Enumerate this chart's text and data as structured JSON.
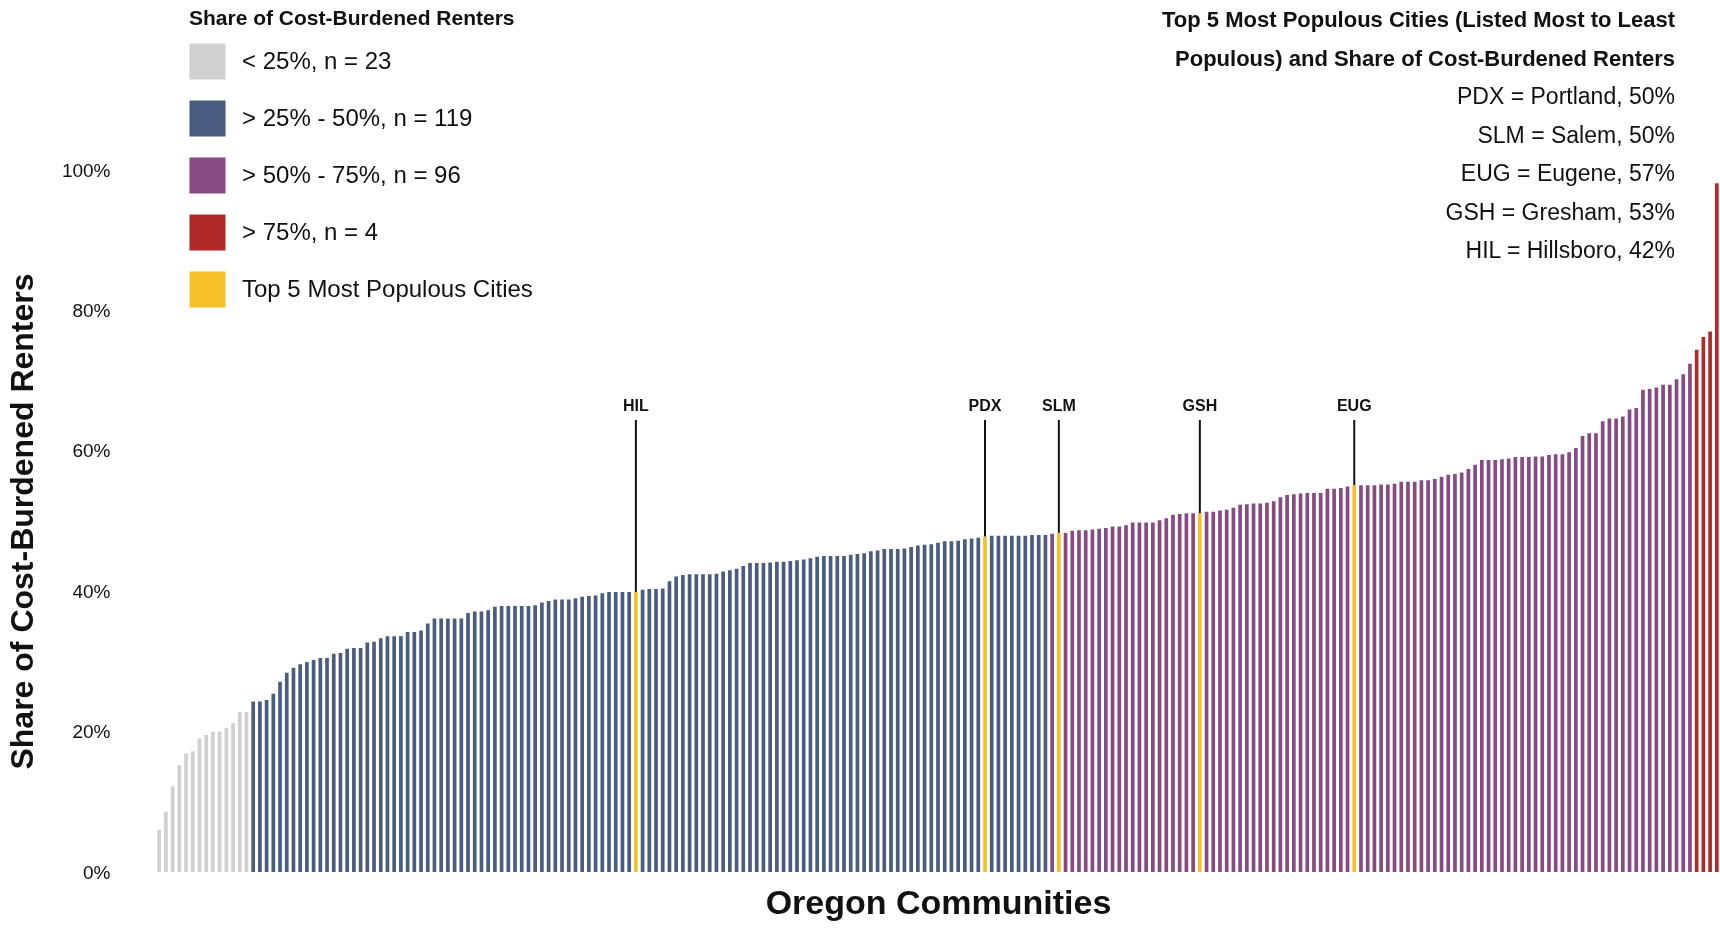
{
  "chart_data": {
    "type": "bar",
    "xlabel": "Oregon Communities",
    "ylabel": "Share of Cost-Burdened Renters",
    "legend_title": "Share of Cost-Burdened Renters",
    "legend": "top left",
    "grid": false,
    "stacked": true,
    "tick_labels": "y",
    "ylim": [
      0,
      100
    ],
    "yticks": [
      {
        "value": 0,
        "label": "0%"
      },
      {
        "value": 20,
        "label": "20%"
      },
      {
        "value": 40,
        "label": "40%"
      },
      {
        "value": 60,
        "label": "60%"
      },
      {
        "value": 80,
        "label": "80%"
      },
      {
        "value": 100,
        "label": "100%"
      }
    ],
    "categories": [
      null,
      null,
      null,
      null,
      null,
      null,
      null,
      null,
      null,
      null,
      null,
      null,
      null,
      null,
      null,
      null,
      null,
      null,
      null,
      null,
      null,
      null,
      null,
      null,
      null,
      null,
      null,
      null,
      null,
      null,
      null,
      null,
      null,
      null,
      null,
      null,
      null,
      null,
      null,
      null,
      null,
      null,
      null,
      null,
      null,
      null,
      null,
      null,
      null,
      null,
      null,
      null,
      null,
      null,
      null,
      null,
      null,
      null,
      null,
      null,
      null,
      null,
      null,
      null,
      null,
      null,
      null,
      null,
      null,
      null,
      null,
      null,
      null,
      null,
      null,
      null,
      null,
      null,
      null,
      null,
      null,
      null,
      null,
      null,
      null,
      null,
      null,
      null,
      null,
      null,
      null,
      null,
      null,
      null,
      null,
      null,
      null,
      null,
      null,
      null,
      null,
      null,
      null,
      null,
      null,
      null,
      null,
      null,
      null,
      null,
      null,
      null,
      null,
      null,
      null,
      null,
      null,
      null,
      null,
      null,
      null,
      null,
      null,
      null,
      null,
      null,
      null,
      null,
      null,
      null,
      null,
      null,
      null,
      null,
      null,
      null,
      null,
      null,
      null,
      null,
      null,
      null,
      null,
      null,
      null,
      null,
      null,
      null,
      null,
      null,
      null,
      null,
      null,
      null,
      null,
      null,
      null,
      null,
      null,
      null,
      null,
      null,
      null,
      null,
      null,
      null,
      null,
      null,
      null,
      null,
      null,
      null,
      null,
      null,
      null,
      null,
      null,
      null,
      null,
      null,
      null,
      null,
      null,
      null,
      null,
      null,
      null,
      null,
      null,
      null,
      null,
      null,
      null,
      null,
      null,
      null,
      null,
      null,
      null,
      null,
      null,
      null,
      null,
      null,
      null,
      null,
      null,
      null,
      null,
      null,
      null,
      null,
      null,
      null,
      null,
      null,
      null,
      null,
      null,
      null,
      null,
      null,
      null,
      null,
      null,
      null,
      null,
      null,
      null,
      null,
      null,
      null,
      null
    ],
    "series": [
      {
        "name": "< 25%, n =  23",
        "color": "#d0d0d0",
        "values": [
          6.0,
          8.6,
          12.2,
          15.2,
          16.9,
          17.2,
          19.0,
          19.5,
          20.0,
          20.0,
          20.5,
          21.2,
          22.8,
          22.8,
          null,
          null,
          null,
          null,
          null,
          null,
          null,
          null,
          null,
          null,
          null,
          null,
          null,
          null,
          null,
          null,
          null,
          null,
          null,
          null,
          null,
          null,
          null,
          null,
          null,
          null,
          null,
          null,
          null,
          null,
          null,
          null,
          null,
          null,
          null,
          null,
          null,
          null,
          null,
          null,
          null,
          null,
          null,
          null,
          null,
          null,
          null,
          null,
          null,
          null,
          null,
          null,
          null,
          null,
          null,
          null,
          null,
          null,
          null,
          null,
          null,
          null,
          null,
          null,
          null,
          null,
          null,
          null,
          null,
          null,
          null,
          null,
          null,
          null,
          null,
          null,
          null,
          null,
          null,
          null,
          null,
          null,
          null,
          null,
          null,
          null,
          null,
          null,
          null,
          null,
          null,
          null,
          null,
          null,
          null,
          null,
          null,
          null,
          null,
          null,
          null,
          null,
          null,
          null,
          null,
          null,
          null,
          null,
          null,
          null,
          null,
          null,
          null,
          null,
          null,
          null,
          null,
          null,
          null,
          null,
          null,
          null,
          null,
          null,
          null,
          null,
          null,
          null,
          null,
          null,
          null,
          null,
          null,
          null,
          null,
          null,
          null,
          null,
          null,
          null,
          null,
          null,
          null,
          null,
          null,
          null,
          null,
          null,
          null,
          null,
          null,
          null,
          null,
          null,
          null,
          null,
          null,
          null,
          null,
          null,
          null,
          null,
          null,
          null,
          null,
          null,
          null,
          null,
          null,
          null,
          null,
          null,
          null,
          null,
          null,
          null,
          null,
          null,
          null,
          null,
          null,
          null,
          null,
          null,
          null,
          null,
          null,
          null,
          null,
          null,
          null,
          null,
          null,
          null,
          null,
          null,
          null,
          null,
          null,
          null,
          null,
          null,
          null,
          null,
          null,
          null,
          null,
          null,
          null,
          null,
          null,
          null,
          null,
          null,
          null,
          null,
          null,
          null,
          null
        ]
      },
      {
        "name": "> 25% - 50%, n = 119",
        "color": "#4a5c80",
        "values": [
          null,
          null,
          null,
          null,
          null,
          null,
          null,
          null,
          null,
          null,
          null,
          null,
          null,
          null,
          24.3,
          24.3,
          24.5,
          25.4,
          27.1,
          28.4,
          29.1,
          29.6,
          29.9,
          30.2,
          30.5,
          30.5,
          31.1,
          31.2,
          31.8,
          31.9,
          31.9,
          32.7,
          32.8,
          33.3,
          33.6,
          33.6,
          33.6,
          34.2,
          34.2,
          34.4,
          35.4,
          36.1,
          36.1,
          36.1,
          36.1,
          36.1,
          36.9,
          37.1,
          37.1,
          37.3,
          37.8,
          37.9,
          37.9,
          37.9,
          37.9,
          37.9,
          38.0,
          38.4,
          38.6,
          38.8,
          38.8,
          38.8,
          39.0,
          39.2,
          39.3,
          39.4,
          39.7,
          39.9,
          39.9,
          39.9,
          39.9,
          null,
          40.2,
          40.3,
          40.3,
          40.4,
          41.4,
          42.1,
          42.3,
          42.4,
          42.4,
          42.4,
          42.4,
          42.5,
          42.8,
          43.0,
          43.2,
          43.6,
          44.0,
          44.0,
          44.0,
          44.1,
          44.2,
          44.2,
          44.3,
          44.4,
          44.5,
          44.7,
          44.9,
          45.0,
          45.0,
          45.0,
          45.0,
          45.2,
          45.3,
          45.4,
          45.7,
          45.8,
          46.0,
          46.0,
          46.0,
          46.1,
          46.3,
          46.5,
          46.6,
          46.7,
          46.9,
          47.1,
          47.1,
          47.2,
          47.4,
          47.5,
          47.6,
          null,
          47.9,
          47.9,
          47.9,
          47.9,
          47.9,
          47.9,
          48.0,
          48.0,
          48.0,
          null,
          null,
          null,
          null,
          null,
          null,
          null,
          null,
          null,
          null,
          null,
          null,
          null,
          null,
          null,
          null,
          null,
          null,
          null,
          null,
          null,
          null,
          null,
          null,
          null,
          null,
          null,
          null,
          null,
          null,
          null,
          null,
          null,
          null,
          null,
          null,
          null,
          null,
          null,
          null,
          null,
          null,
          null,
          null,
          null,
          null,
          null,
          null,
          null,
          null,
          null,
          null,
          null,
          null,
          null,
          null,
          null,
          null,
          null,
          null,
          null,
          null,
          null,
          null,
          null,
          null,
          null,
          null,
          null,
          null,
          null,
          null,
          null,
          null,
          null,
          null,
          null,
          null,
          null,
          null,
          null,
          null,
          null,
          null,
          null,
          null,
          null,
          null,
          null,
          null,
          null,
          null,
          null,
          null,
          null,
          null,
          null,
          null,
          null,
          null
        ]
      },
      {
        "name": "> 50% - 75%, n = 96",
        "color": "#874a82",
        "values": [
          null,
          null,
          null,
          null,
          null,
          null,
          null,
          null,
          null,
          null,
          null,
          null,
          null,
          null,
          null,
          null,
          null,
          null,
          null,
          null,
          null,
          null,
          null,
          null,
          null,
          null,
          null,
          null,
          null,
          null,
          null,
          null,
          null,
          null,
          null,
          null,
          null,
          null,
          null,
          null,
          null,
          null,
          null,
          null,
          null,
          null,
          null,
          null,
          null,
          null,
          null,
          null,
          null,
          null,
          null,
          null,
          null,
          null,
          null,
          null,
          null,
          null,
          null,
          null,
          null,
          null,
          null,
          null,
          null,
          null,
          null,
          null,
          null,
          null,
          null,
          null,
          null,
          null,
          null,
          null,
          null,
          null,
          null,
          null,
          null,
          null,
          null,
          null,
          null,
          null,
          null,
          null,
          null,
          null,
          null,
          null,
          null,
          null,
          null,
          null,
          null,
          null,
          null,
          null,
          null,
          null,
          null,
          null,
          null,
          null,
          null,
          null,
          null,
          null,
          null,
          null,
          null,
          null,
          null,
          null,
          null,
          null,
          null,
          null,
          null,
          null,
          null,
          null,
          null,
          null,
          null,
          null,
          null,
          48.2,
          null,
          48.3,
          48.6,
          48.7,
          48.7,
          48.8,
          48.9,
          49.0,
          49.2,
          49.2,
          49.4,
          49.8,
          49.8,
          49.8,
          49.8,
          50.1,
          50.4,
          50.9,
          51.0,
          51.1,
          51.1,
          null,
          51.3,
          51.3,
          51.5,
          51.6,
          51.9,
          52.3,
          52.4,
          52.5,
          52.5,
          52.6,
          52.8,
          53.4,
          53.7,
          53.8,
          53.9,
          54.0,
          54.0,
          54.0,
          54.6,
          54.6,
          54.7,
          54.9,
          null,
          55.1,
          55.1,
          55.1,
          55.2,
          55.2,
          55.3,
          55.6,
          55.6,
          55.6,
          55.8,
          55.8,
          56.0,
          56.3,
          56.6,
          56.7,
          56.9,
          57.4,
          58.0,
          58.7,
          58.7,
          58.7,
          58.8,
          58.9,
          59.1,
          59.1,
          59.1,
          59.2,
          59.2,
          59.4,
          59.5,
          59.5,
          59.8,
          60.4,
          62.1,
          62.5,
          62.5,
          64.2,
          64.6,
          64.6,
          64.9,
          65.9,
          66.1,
          68.7,
          68.8,
          69.0,
          69.4,
          69.4,
          70.2,
          70.9,
          72.4,
          null,
          null,
          null,
          null
        ]
      },
      {
        "name": "> 75%, n = 4",
        "color": "#b02a2a",
        "values": [
          null,
          null,
          null,
          null,
          null,
          null,
          null,
          null,
          null,
          null,
          null,
          null,
          null,
          null,
          null,
          null,
          null,
          null,
          null,
          null,
          null,
          null,
          null,
          null,
          null,
          null,
          null,
          null,
          null,
          null,
          null,
          null,
          null,
          null,
          null,
          null,
          null,
          null,
          null,
          null,
          null,
          null,
          null,
          null,
          null,
          null,
          null,
          null,
          null,
          null,
          null,
          null,
          null,
          null,
          null,
          null,
          null,
          null,
          null,
          null,
          null,
          null,
          null,
          null,
          null,
          null,
          null,
          null,
          null,
          null,
          null,
          null,
          null,
          null,
          null,
          null,
          null,
          null,
          null,
          null,
          null,
          null,
          null,
          null,
          null,
          null,
          null,
          null,
          null,
          null,
          null,
          null,
          null,
          null,
          null,
          null,
          null,
          null,
          null,
          null,
          null,
          null,
          null,
          null,
          null,
          null,
          null,
          null,
          null,
          null,
          null,
          null,
          null,
          null,
          null,
          null,
          null,
          null,
          null,
          null,
          null,
          null,
          null,
          null,
          null,
          null,
          null,
          null,
          null,
          null,
          null,
          null,
          null,
          null,
          null,
          null,
          null,
          null,
          null,
          null,
          null,
          null,
          null,
          null,
          null,
          null,
          null,
          null,
          null,
          null,
          null,
          null,
          null,
          null,
          null,
          null,
          null,
          null,
          null,
          null,
          null,
          null,
          null,
          null,
          null,
          null,
          null,
          null,
          null,
          null,
          null,
          null,
          null,
          null,
          null,
          null,
          null,
          null,
          null,
          null,
          null,
          null,
          null,
          null,
          null,
          null,
          null,
          null,
          null,
          null,
          null,
          null,
          null,
          null,
          null,
          null,
          null,
          null,
          null,
          null,
          null,
          null,
          null,
          null,
          null,
          null,
          null,
          null,
          null,
          null,
          null,
          null,
          null,
          null,
          null,
          null,
          null,
          null,
          null,
          null,
          null,
          null,
          null,
          null,
          null,
          null,
          null,
          null,
          null,
          74.4,
          76.2,
          77.0,
          98.1
        ]
      },
      {
        "name": "Top 5 Most Populous Cities",
        "color": "#f5c028",
        "values": [
          null,
          null,
          null,
          null,
          null,
          null,
          null,
          null,
          null,
          null,
          null,
          null,
          null,
          null,
          null,
          null,
          null,
          null,
          null,
          null,
          null,
          null,
          null,
          null,
          null,
          null,
          null,
          null,
          null,
          null,
          null,
          null,
          null,
          null,
          null,
          null,
          null,
          null,
          null,
          null,
          null,
          null,
          null,
          null,
          null,
          null,
          null,
          null,
          null,
          null,
          null,
          null,
          null,
          null,
          null,
          null,
          null,
          null,
          null,
          null,
          null,
          null,
          null,
          null,
          null,
          null,
          null,
          null,
          null,
          null,
          null,
          39.9,
          null,
          null,
          null,
          null,
          null,
          null,
          null,
          null,
          null,
          null,
          null,
          null,
          null,
          null,
          null,
          null,
          null,
          null,
          null,
          null,
          null,
          null,
          null,
          null,
          null,
          null,
          null,
          null,
          null,
          null,
          null,
          null,
          null,
          null,
          null,
          null,
          null,
          null,
          null,
          null,
          null,
          null,
          null,
          null,
          null,
          null,
          null,
          null,
          null,
          null,
          null,
          47.8,
          null,
          null,
          null,
          null,
          null,
          null,
          null,
          null,
          null,
          null,
          48.3,
          null,
          null,
          null,
          null,
          null,
          null,
          null,
          null,
          null,
          null,
          null,
          null,
          null,
          null,
          null,
          null,
          null,
          null,
          null,
          null,
          51.1,
          null,
          null,
          null,
          null,
          null,
          null,
          null,
          null,
          null,
          null,
          null,
          null,
          null,
          null,
          null,
          null,
          null,
          null,
          null,
          null,
          null,
          null,
          55.1,
          null,
          null,
          null,
          null,
          null,
          null,
          null,
          null,
          null,
          null,
          null,
          null,
          null,
          null,
          null,
          null,
          null,
          null,
          null,
          null,
          null,
          null,
          null,
          null,
          null,
          null,
          null,
          null,
          null,
          null,
          null,
          null,
          null,
          null,
          null,
          null,
          null,
          null,
          null,
          null,
          null,
          null,
          null,
          null,
          null,
          null,
          null,
          null,
          null,
          null,
          null,
          null,
          null,
          null
        ]
      }
    ],
    "annotations": [
      "Top 5 Most Populous Cities (Listed Most to Least Populous) and Share of Cost-Burdened Renters",
      "PDX = Portland, 50%",
      "SLM = Salem, 50%",
      "EUG = Eugene, 57%",
      "GSH = Gresham, 53%",
      "HIL = Hillsboro, 42%",
      {
        "text": "HIL",
        "y": 39.9
      },
      {
        "text": "PDX",
        "y": 47.8
      },
      {
        "text": "SLM",
        "y": 48.3
      },
      {
        "text": "GSH",
        "y": 51.1
      },
      {
        "text": "EUG",
        "y": 55.1
      }
    ]
  }
}
